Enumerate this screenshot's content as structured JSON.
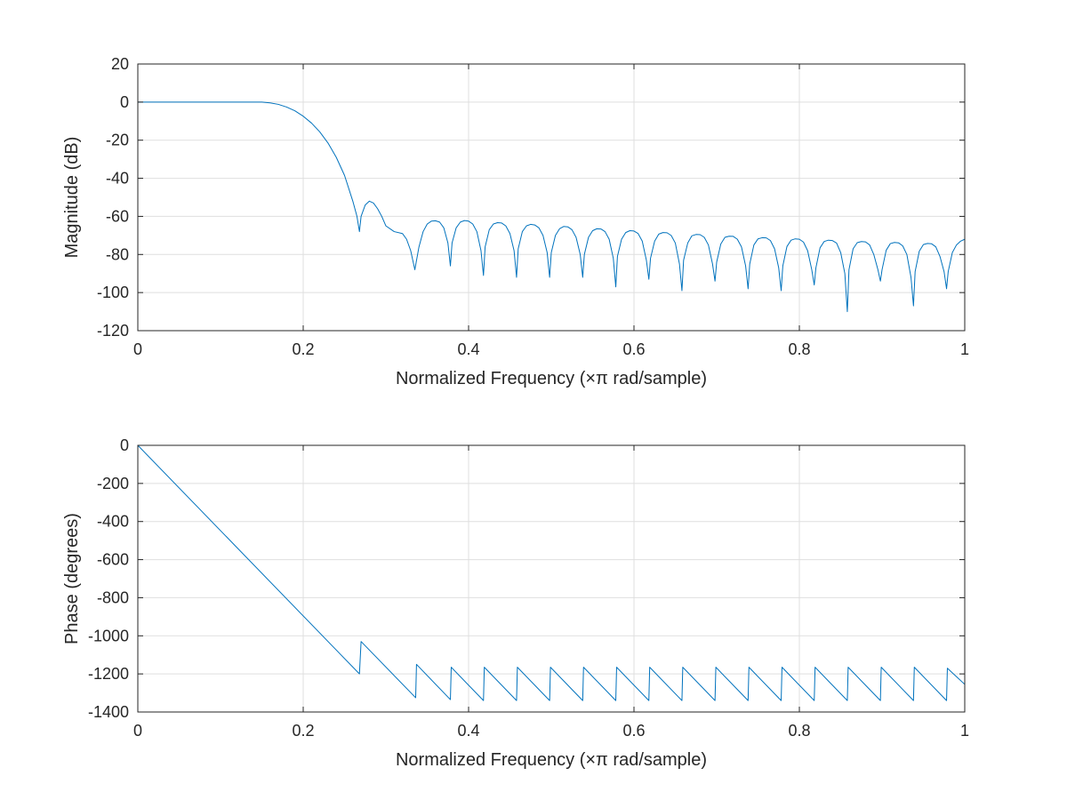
{
  "chart_data": [
    {
      "type": "line",
      "title": "",
      "xlabel": "Normalized Frequency (×π rad/sample)",
      "ylabel": "Magnitude (dB)",
      "xlim": [
        0,
        1
      ],
      "ylim": [
        -120,
        20
      ],
      "xticks": [
        0,
        0.2,
        0.4,
        0.6,
        0.8,
        1
      ],
      "xtick_labels": [
        "0",
        "0.2",
        "0.4",
        "0.6",
        "0.8",
        "1"
      ],
      "yticks": [
        20,
        0,
        -20,
        -40,
        -60,
        -80,
        -100,
        -120
      ],
      "ytick_labels": [
        "20",
        "0",
        "-20",
        "-40",
        "-60",
        "-80",
        "-100",
        "-120"
      ],
      "grid": true,
      "line_color": "#0072bd",
      "series": [
        {
          "x": [
            0,
            0.02,
            0.04,
            0.06,
            0.08,
            0.1,
            0.12,
            0.14,
            0.15,
            0.16,
            0.17,
            0.18,
            0.19,
            0.2,
            0.21,
            0.22,
            0.23,
            0.24,
            0.25,
            0.26,
            0.265,
            0.268,
            0.27,
            0.275,
            0.28,
            0.285,
            0.29,
            0.295,
            0.3,
            0.31,
            0.32,
            0.325,
            0.33,
            0.335,
            0.34,
            0.345,
            0.35,
            0.355,
            0.36,
            0.365,
            0.37,
            0.375,
            0.378,
            0.38,
            0.385,
            0.39,
            0.395,
            0.4,
            0.405,
            0.41,
            0.415,
            0.418,
            0.42,
            0.425,
            0.43,
            0.435,
            0.44,
            0.445,
            0.45,
            0.455,
            0.458,
            0.46,
            0.465,
            0.47,
            0.475,
            0.48,
            0.485,
            0.49,
            0.495,
            0.498,
            0.5,
            0.505,
            0.51,
            0.515,
            0.52,
            0.525,
            0.53,
            0.535,
            0.538,
            0.54,
            0.545,
            0.55,
            0.555,
            0.56,
            0.565,
            0.57,
            0.575,
            0.578,
            0.58,
            0.585,
            0.59,
            0.595,
            0.6,
            0.605,
            0.61,
            0.615,
            0.618,
            0.62,
            0.625,
            0.63,
            0.635,
            0.64,
            0.645,
            0.65,
            0.655,
            0.658,
            0.66,
            0.665,
            0.67,
            0.675,
            0.68,
            0.685,
            0.69,
            0.695,
            0.698,
            0.7,
            0.705,
            0.71,
            0.715,
            0.72,
            0.725,
            0.73,
            0.735,
            0.738,
            0.74,
            0.745,
            0.75,
            0.755,
            0.76,
            0.765,
            0.77,
            0.775,
            0.778,
            0.78,
            0.785,
            0.79,
            0.795,
            0.8,
            0.805,
            0.81,
            0.815,
            0.818,
            0.82,
            0.825,
            0.83,
            0.835,
            0.84,
            0.845,
            0.85,
            0.855,
            0.858,
            0.86,
            0.865,
            0.87,
            0.875,
            0.88,
            0.885,
            0.89,
            0.895,
            0.898,
            0.9,
            0.905,
            0.91,
            0.915,
            0.92,
            0.925,
            0.93,
            0.935,
            0.938,
            0.94,
            0.945,
            0.95,
            0.955,
            0.96,
            0.965,
            0.97,
            0.975,
            0.978,
            0.98,
            0.985,
            0.99,
            0.995,
            1
          ],
          "y": [
            0,
            0,
            0,
            0,
            0,
            0,
            0,
            0,
            0,
            -0.4,
            -1.2,
            -2.6,
            -4.6,
            -7.4,
            -11,
            -15.6,
            -21.5,
            -29,
            -38.5,
            -52,
            -60,
            -68,
            -60,
            -54,
            -52,
            -53,
            -56,
            -60,
            -65,
            -68,
            -69,
            -72,
            -78,
            -88,
            -76,
            -68,
            -64,
            -62.5,
            -62.3,
            -63,
            -66,
            -74,
            -86,
            -74,
            -66,
            -63,
            -62.2,
            -62.5,
            -64,
            -68,
            -78,
            -91,
            -76,
            -67,
            -64,
            -63.3,
            -63.5,
            -65,
            -69,
            -78,
            -92,
            -77,
            -68,
            -65,
            -64.2,
            -64.5,
            -66,
            -70,
            -79,
            -92,
            -79,
            -70,
            -66.5,
            -65.3,
            -65.5,
            -67,
            -71,
            -80,
            -92,
            -80,
            -71,
            -67.5,
            -66.5,
            -66.6,
            -68,
            -72,
            -82,
            -97,
            -81,
            -72,
            -68.5,
            -67.5,
            -67.7,
            -69,
            -73,
            -83,
            -93,
            -82,
            -73,
            -69.3,
            -68.5,
            -68.6,
            -70,
            -74,
            -85,
            -99,
            -83,
            -74,
            -70.2,
            -69.5,
            -69.6,
            -71,
            -75,
            -85,
            -94,
            -84,
            -74.5,
            -71,
            -70.4,
            -70.5,
            -72,
            -76,
            -86,
            -98,
            -85,
            -75,
            -71.8,
            -71.2,
            -71.3,
            -72.7,
            -77,
            -87,
            -99,
            -86,
            -75.8,
            -72.5,
            -71.8,
            -72,
            -73.5,
            -78,
            -88,
            -96,
            -87,
            -76.5,
            -73.2,
            -72.5,
            -72.7,
            -74,
            -79,
            -90,
            -110,
            -88,
            -77,
            -73.8,
            -73.2,
            -73.4,
            -75,
            -80,
            -88,
            -94,
            -88,
            -77.8,
            -74.3,
            -73.7,
            -73.9,
            -75.5,
            -80,
            -92,
            -107,
            -89,
            -78.3,
            -74.8,
            -74.2,
            -74.4,
            -76,
            -81,
            -89,
            -98,
            -89,
            -79,
            -75,
            -73,
            -72
          ]
        }
      ]
    },
    {
      "type": "line",
      "title": "",
      "xlabel": "Normalized Frequency (×π rad/sample)",
      "ylabel": "Phase (degrees)",
      "xlim": [
        0,
        1
      ],
      "ylim": [
        -1400,
        0
      ],
      "xticks": [
        0,
        0.2,
        0.4,
        0.6,
        0.8,
        1
      ],
      "xtick_labels": [
        "0",
        "0.2",
        "0.4",
        "0.6",
        "0.8",
        "1"
      ],
      "yticks": [
        0,
        -200,
        -400,
        -600,
        -800,
        -1000,
        -1200,
        -1400
      ],
      "ytick_labels": [
        "0",
        "-200",
        "-400",
        "-600",
        "-800",
        "-1000",
        "-1200",
        "-1400"
      ],
      "grid": true,
      "line_color": "#0072bd",
      "series": [
        {
          "x": [
            0,
            0.268,
            0.27,
            0.336,
            0.337,
            0.378,
            0.379,
            0.418,
            0.419,
            0.458,
            0.459,
            0.498,
            0.499,
            0.538,
            0.539,
            0.578,
            0.579,
            0.618,
            0.619,
            0.658,
            0.659,
            0.698,
            0.699,
            0.738,
            0.739,
            0.778,
            0.779,
            0.818,
            0.819,
            0.858,
            0.859,
            0.898,
            0.899,
            0.938,
            0.939,
            0.978,
            0.979,
            1
          ],
          "y": [
            0,
            -1200,
            -1030,
            -1325,
            -1150,
            -1335,
            -1165,
            -1340,
            -1165,
            -1340,
            -1165,
            -1340,
            -1165,
            -1340,
            -1165,
            -1340,
            -1165,
            -1340,
            -1165,
            -1340,
            -1165,
            -1340,
            -1165,
            -1340,
            -1165,
            -1340,
            -1165,
            -1340,
            -1165,
            -1340,
            -1165,
            -1340,
            -1165,
            -1340,
            -1165,
            -1340,
            -1170,
            -1255
          ]
        }
      ]
    }
  ]
}
